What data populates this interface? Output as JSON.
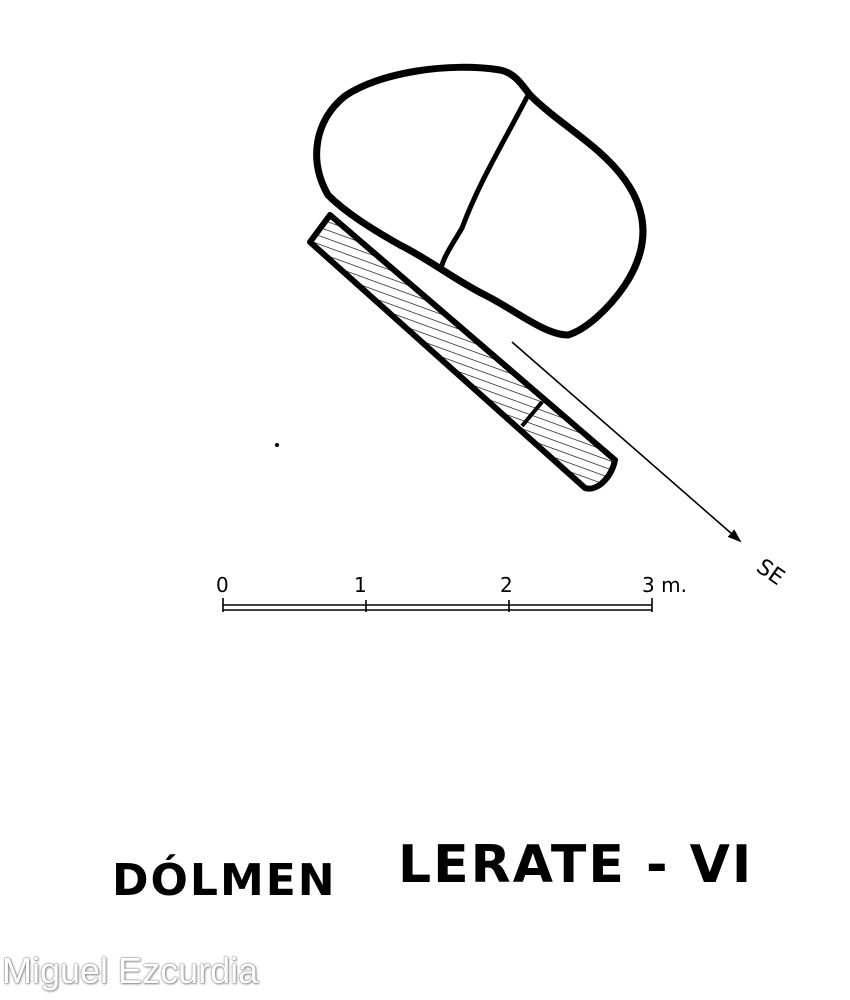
{
  "diagram": {
    "title_left": "DÓLMEN",
    "title_right": "LERATE - VI",
    "direction_label": "SE",
    "scale": {
      "ticks": [
        "0",
        "1",
        "2",
        "3 m."
      ]
    }
  },
  "watermark": "Miguel Ezcurdia",
  "colors": {
    "ink": "#000000",
    "background": "#ffffff"
  }
}
